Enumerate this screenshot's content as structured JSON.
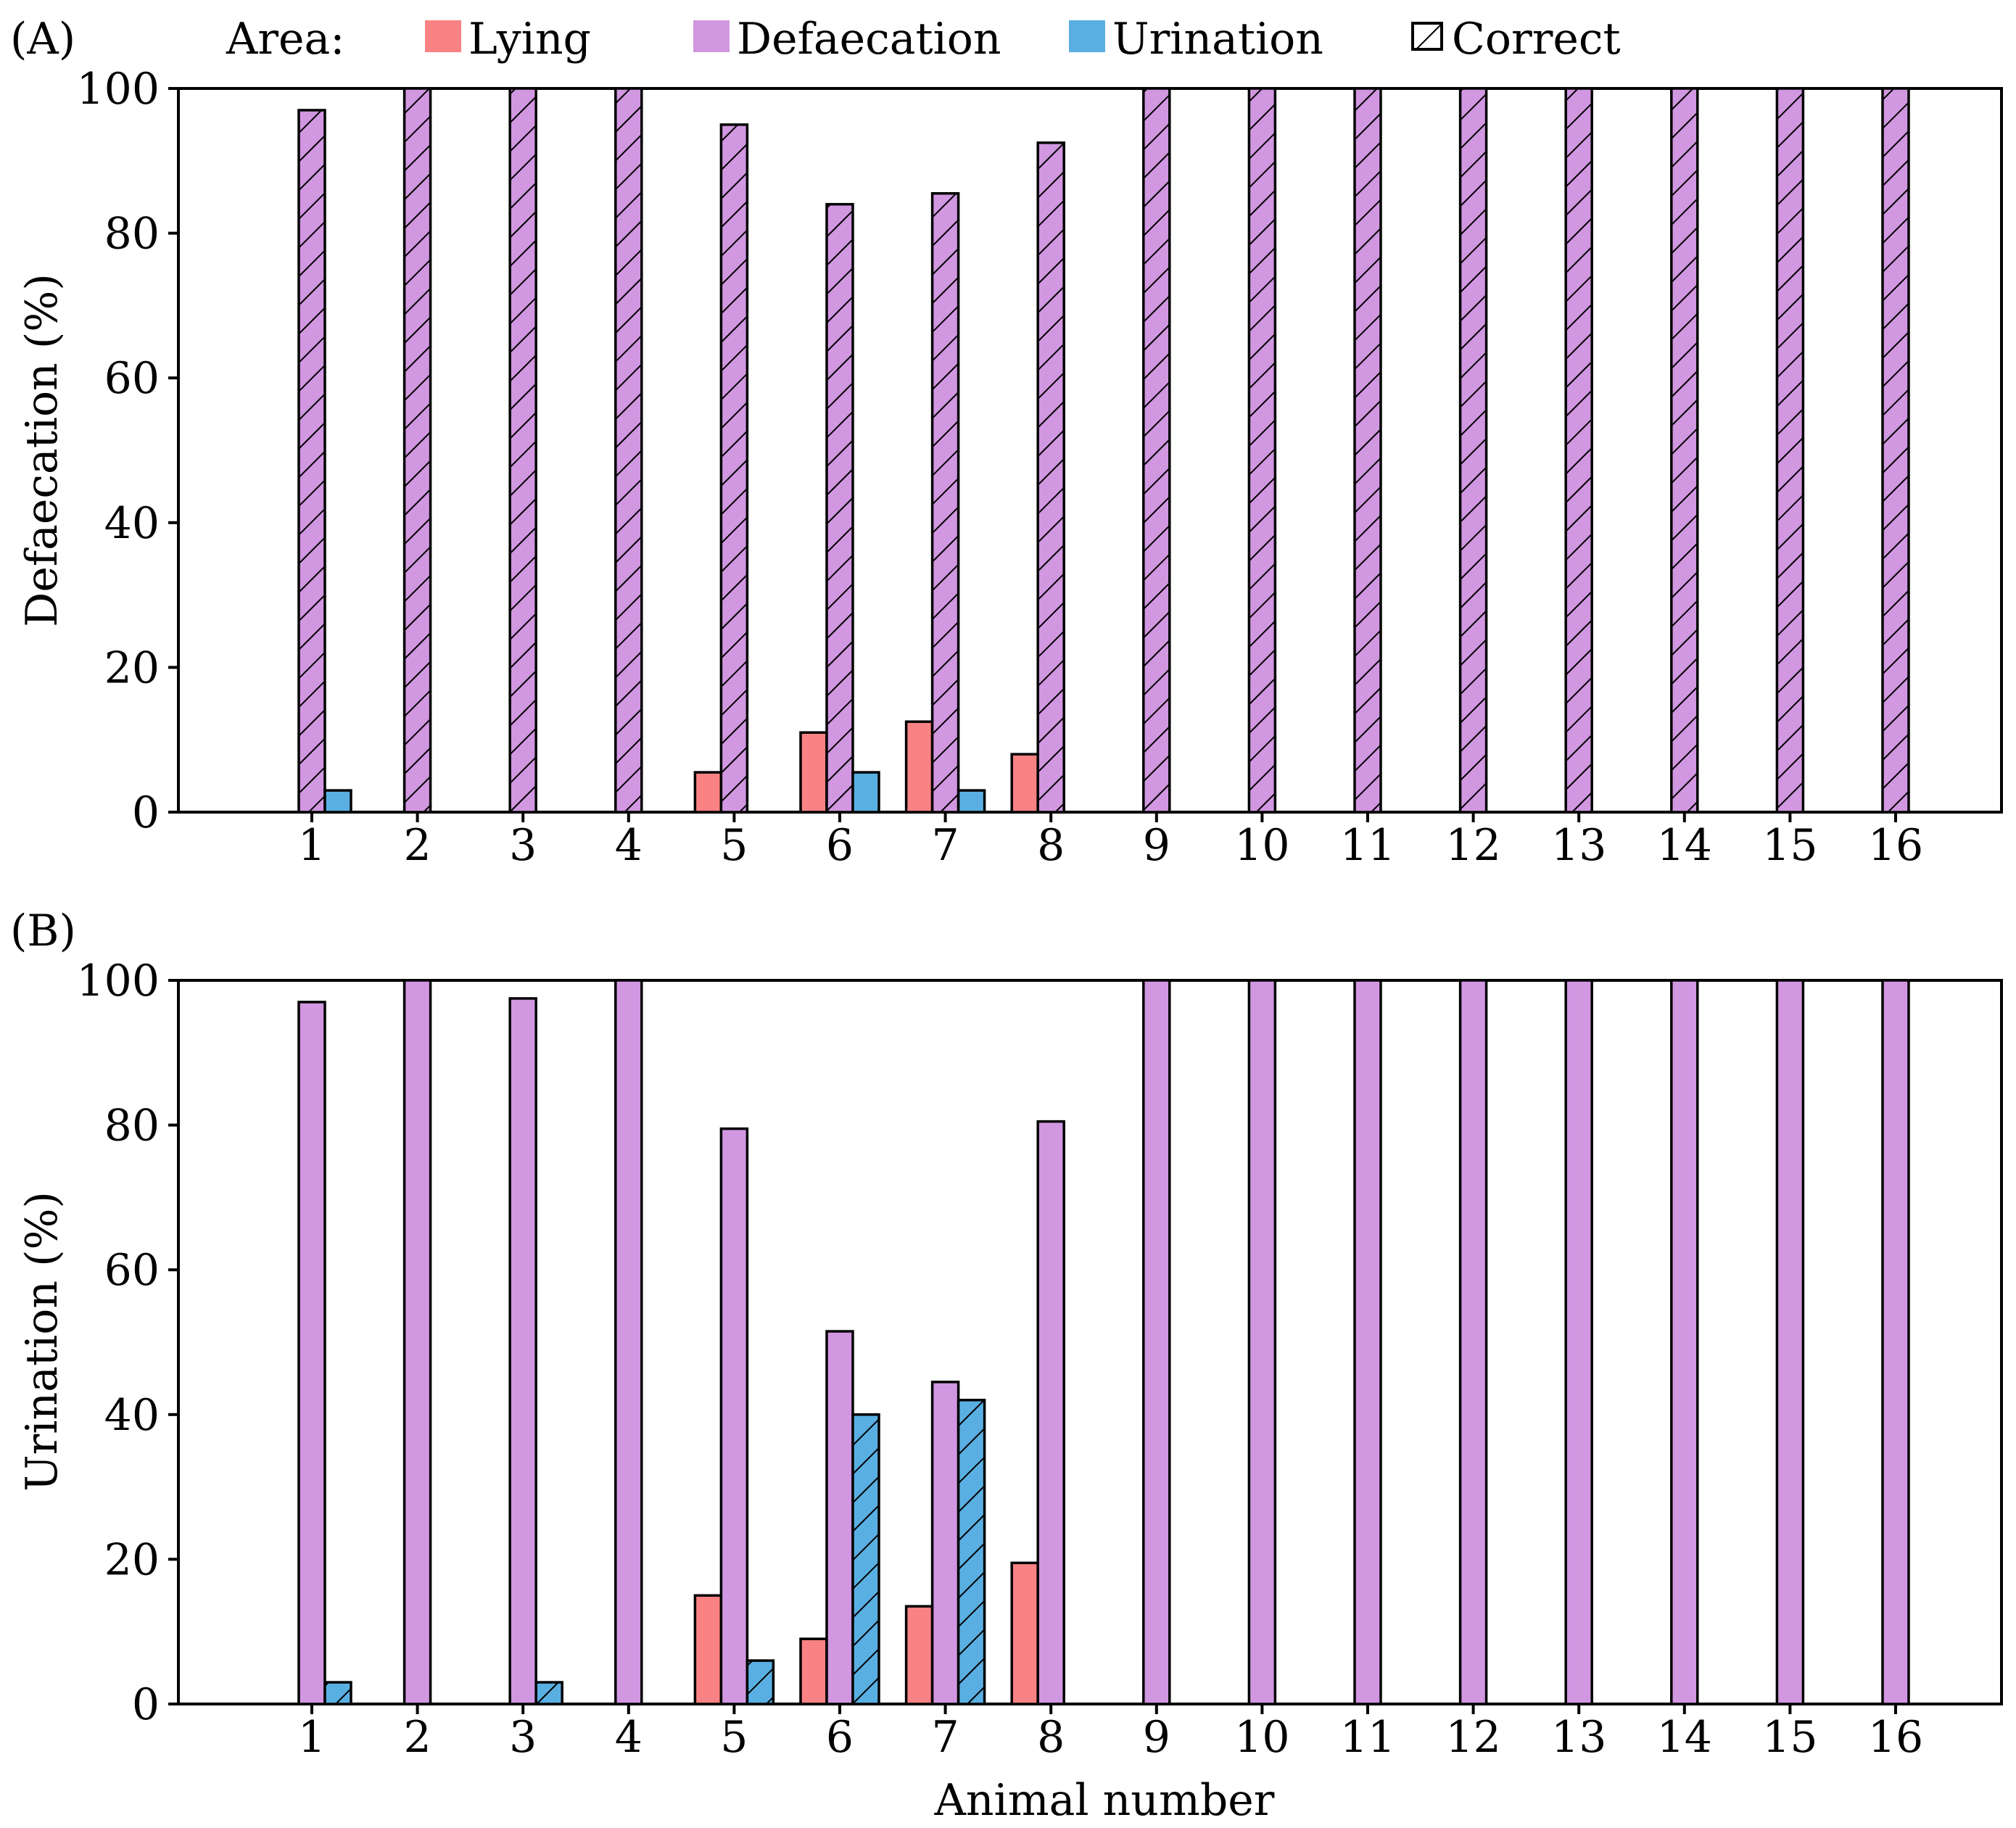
{
  "legend": {
    "title": "Area:",
    "items": [
      {
        "key": "lying",
        "label": "Lying",
        "color": "#f98284"
      },
      {
        "key": "defaecation",
        "label": "Defaecation",
        "color": "#d197e0"
      },
      {
        "key": "urination",
        "label": "Urination",
        "color": "#5aafe2"
      },
      {
        "key": "correct",
        "label": "Correct",
        "pattern": "hatch"
      }
    ]
  },
  "chart_data": [
    {
      "type": "bar",
      "panel_label": "(A)",
      "ylabel": "Defaecation (%)",
      "xlabel": "",
      "ylim": [
        0,
        100
      ],
      "yticks": [
        0,
        20,
        40,
        60,
        80,
        100
      ],
      "categories": [
        "1",
        "2",
        "3",
        "4",
        "5",
        "6",
        "7",
        "8",
        "9",
        "10",
        "11",
        "12",
        "13",
        "14",
        "15",
        "16"
      ],
      "correct_series": "defaecation",
      "series": [
        {
          "name": "Lying",
          "key": "lying",
          "values": [
            0,
            0,
            0,
            0,
            5.5,
            11,
            12.5,
            8,
            0,
            0,
            0,
            0,
            0,
            0,
            0,
            0
          ]
        },
        {
          "name": "Defaecation",
          "key": "defaecation",
          "values": [
            97,
            100,
            100,
            100,
            95,
            84,
            85.5,
            92.5,
            100,
            100,
            100,
            100,
            100,
            100,
            100,
            100
          ]
        },
        {
          "name": "Urination",
          "key": "urination",
          "values": [
            3,
            0,
            0,
            0,
            0,
            5.5,
            3,
            0,
            0,
            0,
            0,
            0,
            0,
            0,
            0,
            0
          ]
        }
      ]
    },
    {
      "type": "bar",
      "panel_label": "(B)",
      "ylabel": "Urination (%)",
      "xlabel": "Animal number",
      "ylim": [
        0,
        100
      ],
      "yticks": [
        0,
        20,
        40,
        60,
        80,
        100
      ],
      "categories": [
        "1",
        "2",
        "3",
        "4",
        "5",
        "6",
        "7",
        "8",
        "9",
        "10",
        "11",
        "12",
        "13",
        "14",
        "15",
        "16"
      ],
      "correct_series": "urination",
      "series": [
        {
          "name": "Lying",
          "key": "lying",
          "values": [
            0,
            0,
            0,
            0,
            15,
            9,
            13.5,
            19.5,
            0,
            0,
            0,
            0,
            0,
            0,
            0,
            0
          ]
        },
        {
          "name": "Defaecation",
          "key": "defaecation",
          "values": [
            97,
            100,
            97.5,
            100,
            79.5,
            51.5,
            44.5,
            80.5,
            100,
            100,
            100,
            100,
            100,
            100,
            100,
            100
          ]
        },
        {
          "name": "Urination",
          "key": "urination",
          "values": [
            3,
            0,
            3,
            0,
            6,
            40,
            42,
            0,
            0,
            0,
            0,
            0,
            0,
            0,
            0,
            0
          ]
        }
      ]
    }
  ]
}
